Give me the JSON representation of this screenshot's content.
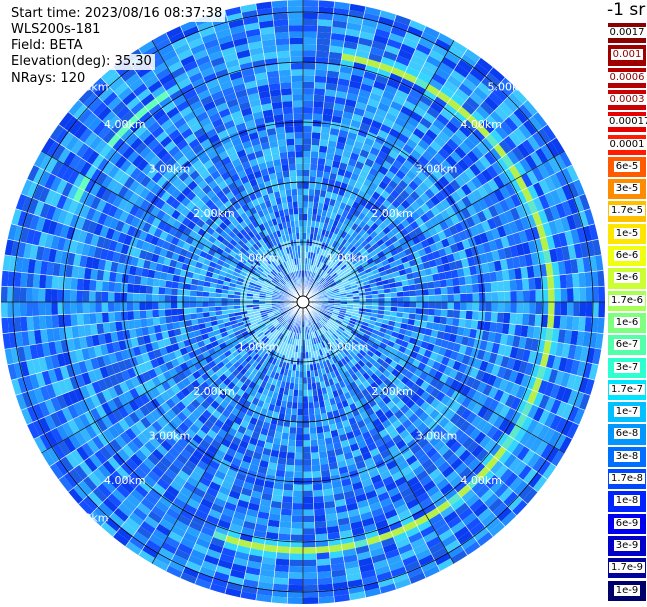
{
  "header": {
    "start_time": "Start time: 2023/08/16 08:37:38",
    "instrument": "WLS200s-181",
    "field": "Field: BETA",
    "elevation": "Elevation(deg): 35.30",
    "nrays": "NRays: 120"
  },
  "colorbar": {
    "unit": "-1 sr",
    "labels": [
      "0.0017",
      "0.001",
      "0.0006",
      "0.0003",
      "0.00017",
      "0.0001",
      "6e-5",
      "3e-5",
      "1.7e-5",
      "1e-5",
      "6e-6",
      "3e-6",
      "1.7e-6",
      "1e-6",
      "6e-7",
      "3e-7",
      "1.7e-7",
      "1e-7",
      "6e-8",
      "3e-8",
      "1.7e-8",
      "1e-8",
      "6e-9",
      "3e-9",
      "1.7e-9",
      "1e-9"
    ],
    "colors": [
      "#8b0000",
      "#9e0000",
      "#b40000",
      "#cb0000",
      "#e60000",
      "#ff1a00",
      "#ff5a00",
      "#ff8c00",
      "#ffc000",
      "#ffe600",
      "#f0ff10",
      "#ccff33",
      "#a8ff55",
      "#7fff7f",
      "#55ffaa",
      "#2effd0",
      "#00e5ff",
      "#00c0ff",
      "#0096ff",
      "#006eff",
      "#0048ff",
      "#0024ff",
      "#0000f0",
      "#0000c8",
      "#00009a",
      "#00006a"
    ],
    "label_colors": [
      "#000000",
      "#8b0000",
      "#8b0000",
      "#8b0000",
      "#000000",
      "#000000",
      "#000000",
      "#000000",
      "#000000",
      "#000000",
      "#000000",
      "#000000",
      "#000000",
      "#000000",
      "#000000",
      "#000000",
      "#000000",
      "#000000",
      "#000000",
      "#000000",
      "#000000",
      "#000000",
      "#000000",
      "#000000",
      "#000000",
      "#000000"
    ]
  },
  "chart_data": {
    "type": "heatmap",
    "projection": "polar PPI",
    "rays": 120,
    "range_rings_km": [
      1.0,
      2.0,
      3.0,
      4.0,
      5.0
    ],
    "range_labels": [
      "1.00km",
      "2.00km",
      "3.00km",
      "4.00km",
      "5.00km"
    ],
    "max_range_km": 5.9,
    "background_level": "1e-8",
    "features": [
      {
        "name": "ring",
        "range_km": 4.85,
        "level": "1.7e-6",
        "azimuth_deg": [
          10,
          200
        ]
      },
      {
        "name": "ring",
        "range_km": 4.85,
        "level": "3e-7",
        "azimuth_deg": [
          290,
          330
        ]
      },
      {
        "name": "inner",
        "range_km": 0.8,
        "level": "1e-7"
      }
    ]
  }
}
